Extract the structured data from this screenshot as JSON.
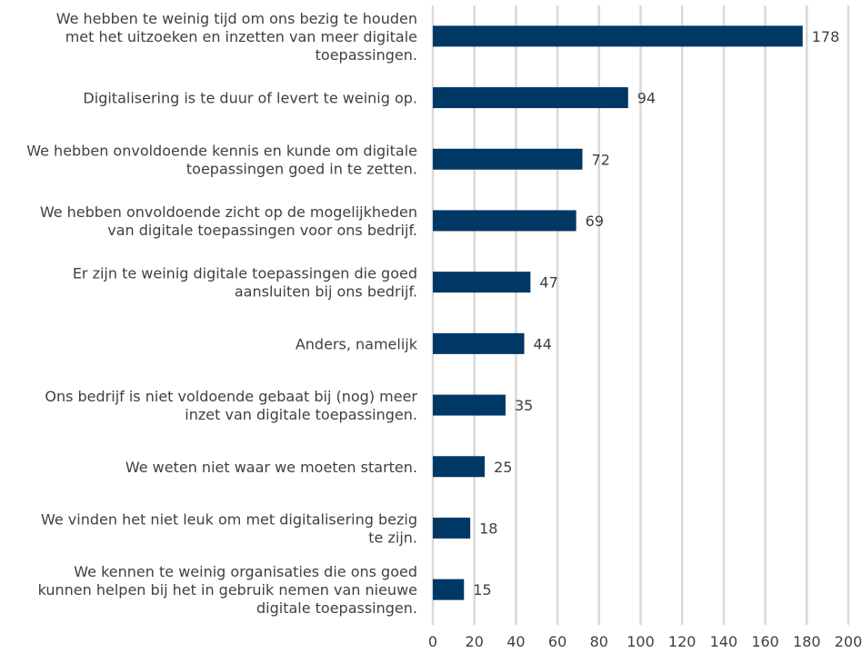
{
  "chart_data": {
    "type": "bar",
    "orientation": "horizontal",
    "categories": [
      [
        "We hebben te weinig tijd om ons bezig te houden",
        "met het uitzoeken en inzetten van meer digitale",
        "toepassingen."
      ],
      [
        "Digitalisering is te duur of levert te weinig op."
      ],
      [
        "We hebben onvoldoende kennis en kunde om digitale",
        "toepassingen goed in te zetten."
      ],
      [
        "We hebben onvoldoende zicht op de mogelijkheden",
        "van digitale toepassingen voor ons bedrijf."
      ],
      [
        "Er zijn te weinig digitale toepassingen die goed",
        "aansluiten bij ons bedrijf."
      ],
      [
        "Anders, namelijk"
      ],
      [
        "Ons bedrijf is niet voldoende gebaat bij (nog) meer",
        "inzet van digitale toepassingen."
      ],
      [
        "We weten niet waar we moeten starten."
      ],
      [
        "We vinden het niet leuk om met digitalisering bezig",
        "te zijn."
      ],
      [
        "We kennen te weinig organisaties die ons goed",
        "kunnen helpen bij het in gebruik nemen van nieuwe",
        "digitale toepassingen."
      ]
    ],
    "values": [
      178,
      94,
      72,
      69,
      47,
      44,
      35,
      25,
      18,
      15
    ],
    "data_labels": [
      "178",
      "94",
      "72",
      "69",
      "47",
      "44",
      "35",
      "25",
      "18",
      "15"
    ],
    "x_ticks": [
      0,
      20,
      40,
      60,
      80,
      100,
      120,
      140,
      160,
      180,
      200
    ],
    "x_tick_labels": [
      "0",
      "20",
      "40",
      "60",
      "80",
      "100",
      "120",
      "140",
      "160",
      "180",
      "200"
    ],
    "xlim": [
      0,
      200
    ],
    "title": "",
    "xlabel": "",
    "ylabel": "",
    "grid": "vertical",
    "legend": "none",
    "colors": {
      "bar": "#003865",
      "grid": "#d9d9d9",
      "text": "#404040"
    }
  }
}
